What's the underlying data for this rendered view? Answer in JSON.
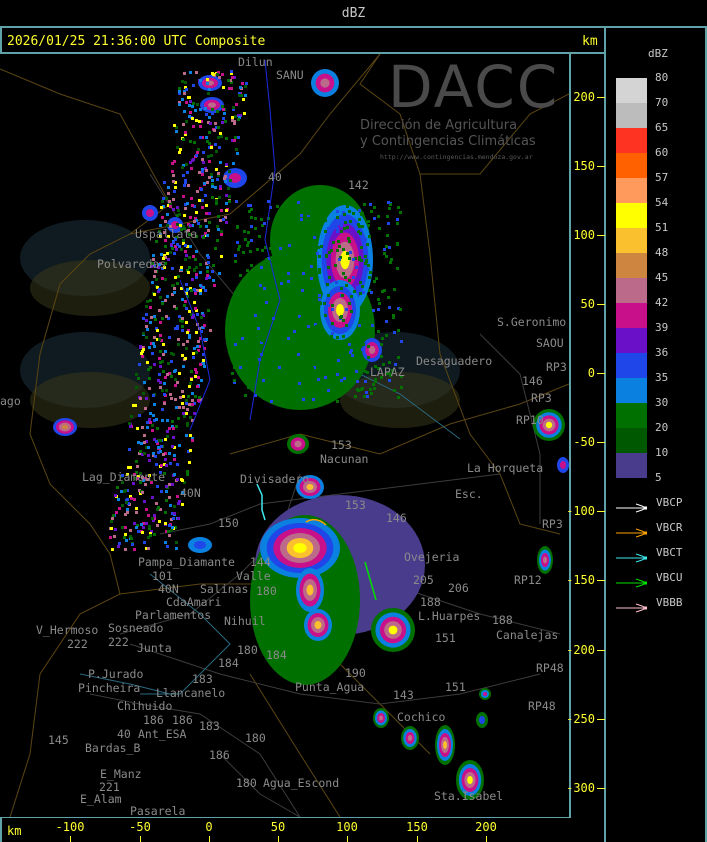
{
  "topbar": {
    "title": "dBZ"
  },
  "header": {
    "title": "2026/01/25 21:36:00 UTC Composite",
    "unit_top": "km"
  },
  "axes": {
    "unit_bottom": "km",
    "x_ticks": [
      "-100",
      "-50",
      "0",
      "50",
      "100",
      "150",
      "200"
    ],
    "y_ticks": [
      "200",
      "150",
      "100",
      "50",
      "0",
      "-50",
      "-100",
      "-150",
      "-200",
      "-250",
      "-300"
    ]
  },
  "legend": {
    "title": "dBZ",
    "labels": [
      "80",
      "70",
      "65",
      "60",
      "57",
      "54",
      "51",
      "48",
      "45",
      "42",
      "39",
      "36",
      "35",
      "30",
      "20",
      "10",
      "5"
    ],
    "colors": [
      "#d4d4d4",
      "#bcbcbc",
      "#ff3322",
      "#ff6000",
      "#ff9a5c",
      "#ffff00",
      "#fbc02d",
      "#cd853f",
      "#bc6a8a",
      "#c8108a",
      "#6a10c8",
      "#1e46e8",
      "#0a80e0",
      "#007000",
      "#005800",
      "#4a3c8c"
    ],
    "radars": [
      {
        "name": "VBCP",
        "color": "#ffffff"
      },
      {
        "name": "VBCR",
        "color": "#ffa500"
      },
      {
        "name": "VBCT",
        "color": "#40e8f0"
      },
      {
        "name": "VBCU",
        "color": "#00e000"
      },
      {
        "name": "VBBB",
        "color": "#ffc0cb"
      }
    ]
  },
  "watermark": {
    "brand": "DACC",
    "line1": "Dirección de Agricultura",
    "line2": "y Contingencias Climáticas",
    "url": "http://www.contingencias.mendoza.gov.ar"
  },
  "map": {
    "places": [
      "Dilun",
      "SANU",
      "142",
      "40",
      "Uspallata",
      "Polvaredas",
      "S.Geronimo",
      "SAOU",
      "Desaguadero",
      "LAPAZ",
      "146",
      "RP3",
      "RP3",
      "RP10",
      "153",
      "Nacunan",
      "La Horqueta",
      "Divisadero",
      "Lag_Diamante",
      "40N",
      "Esc.",
      "153",
      "146",
      "150",
      "Ovejeria",
      "205",
      "206",
      "188",
      "L.Huarpes",
      "151",
      "188",
      "Canalejas",
      "RP3",
      "RP12",
      "RP48",
      "RP48",
      "Pampa_Diamante",
      "101",
      "40N",
      "CdaAmari",
      "Parlamentos",
      "Salinas",
      "180",
      "Valle",
      "144",
      "Sosneado",
      "Nihuil",
      "V_Hermoso",
      "222",
      "222",
      "Junta",
      "P.Jurado",
      "Pincheira",
      "184",
      "Llancanelo",
      "183",
      "180",
      "184",
      "Chihuido",
      "186",
      "186",
      "40",
      "Ant_ESA",
      "183",
      "145",
      "Bardas_B",
      "180",
      "186",
      "E_Manz",
      "221",
      "E_Alam",
      "Pasarela",
      "180",
      "Agua_Escond",
      "Punta_Agua",
      "190",
      "143",
      "151",
      "Cochico",
      "Sta.Isabel",
      "ago"
    ]
  }
}
